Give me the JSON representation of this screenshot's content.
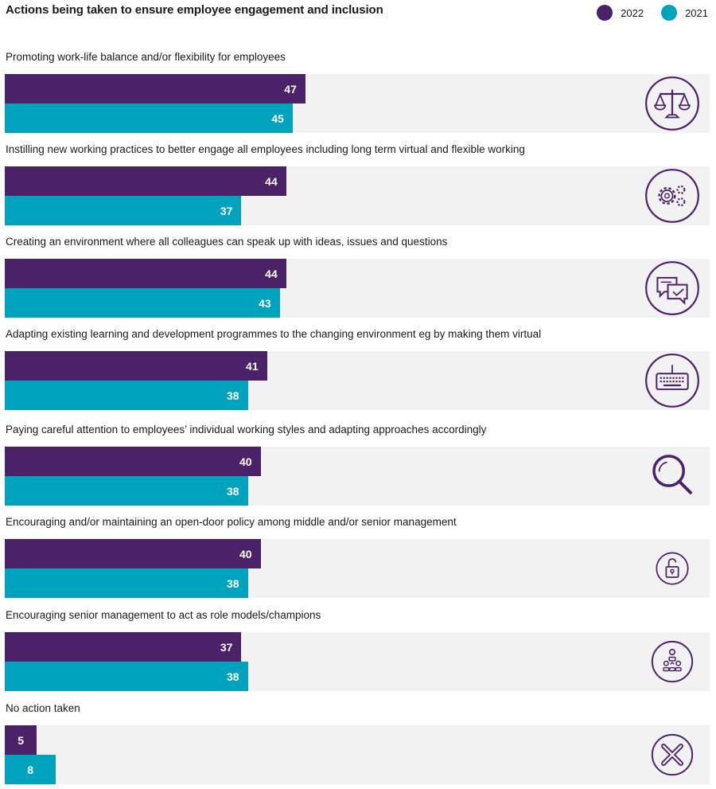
{
  "title": "Actions being taken to ensure employee engagement and inclusion",
  "colors": {
    "y2022": "#4b2268",
    "y2021": "#00a3bd",
    "panel": "#f2f2f2",
    "icon": "#4b2268"
  },
  "chart_data": {
    "type": "bar",
    "orientation": "horizontal",
    "title": "Actions being taken to ensure employee engagement and inclusion",
    "legend_position": "top-right",
    "xlim": [
      0,
      100
    ],
    "categories": [
      "Promoting work-life balance and/or flexibility for employees",
      "Instilling new working practices to better engage all employees including long term virtual and flexible working",
      "Creating an environment where all colleagues can speak up with ideas, issues and questions",
      "Adapting existing learning and development programmes to the changing environment eg by making them virtual",
      "Paying careful attention to employees’ individual working styles and adapting approaches accordingly",
      "Encouraging and/or maintaining an open-door policy among middle and/or senior management",
      "Encouraging senior management to act as role models/champions",
      "No action taken"
    ],
    "series": [
      {
        "name": "2022",
        "color": "#4b2268",
        "values": [
          47,
          44,
          44,
          41,
          40,
          40,
          37,
          5
        ]
      },
      {
        "name": "2021",
        "color": "#00a3bd",
        "values": [
          45,
          37,
          43,
          38,
          38,
          38,
          38,
          8
        ]
      }
    ],
    "icons": [
      "scales-icon",
      "gears-icon",
      "speech-bubbles-icon",
      "keyboard-icon",
      "magnifier-icon",
      "padlock-icon",
      "org-chart-icon",
      "cross-icon"
    ]
  }
}
